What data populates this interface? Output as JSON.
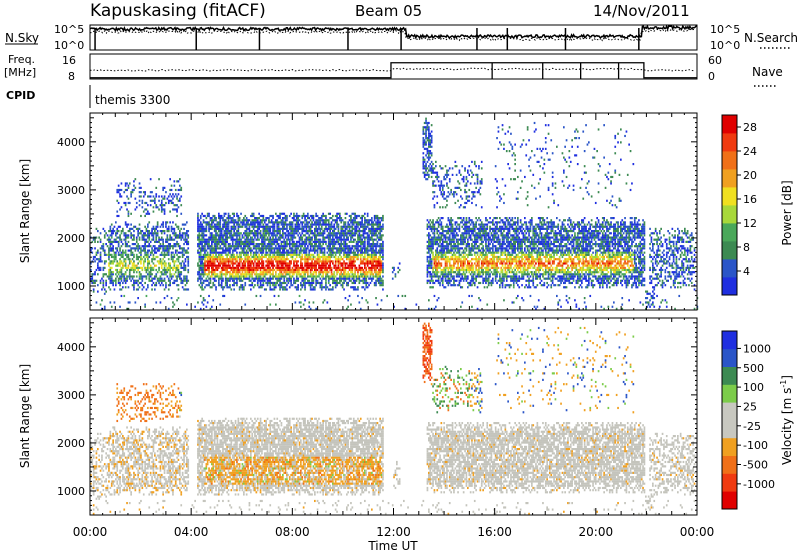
{
  "header": {
    "station": "Kapuskasing (fitACF)",
    "beam": "Beam 05",
    "date": "14/Nov/2011"
  },
  "strips": {
    "nsky_label": "N.Sky",
    "nsky_ticks": [
      "10^5",
      "10^0"
    ],
    "nsearch_label": "N.Search",
    "nsearch_ticks": [
      "10^5",
      "10^0"
    ],
    "freq_label_1": "Freq.",
    "freq_label_2": "[MHz]",
    "freq_ticks": [
      "16",
      "8"
    ],
    "nave_label": "Nave",
    "nave_ticks": [
      "60",
      "0"
    ],
    "cpid_label": "CPID",
    "cpid_value": "themis 3300"
  },
  "colors": {
    "power_scale": [
      "#1f2fe0",
      "#2a55c8",
      "#3c8a52",
      "#4aa85a",
      "#a8d83a",
      "#f0e020",
      "#f0a020",
      "#f07018",
      "#f03a10",
      "#e00000"
    ],
    "velocity_scale": [
      "#1f2fe0",
      "#2a55c8",
      "#3c8a52",
      "#7ccc4a",
      "#c8c8c0",
      "#c8c8c0",
      "#f0a020",
      "#f07018",
      "#f03a10",
      "#e00000"
    ],
    "gray": "#c4c4bc"
  },
  "chart_data": [
    {
      "type": "heatmap",
      "title": "Power",
      "xlabel": "Time UT",
      "ylabel": "Slant Range [km]",
      "xlim": [
        "00:00",
        "24:00"
      ],
      "ylim": [
        500,
        4600
      ],
      "x_tick_labels": [
        "00:00",
        "04:00",
        "08:00",
        "12:00",
        "16:00",
        "20:00",
        "00:00"
      ],
      "y_tick_labels": [
        "1000",
        "2000",
        "3000",
        "4000"
      ],
      "colorbar_label": "Power [dB]",
      "colorbar_ticks": [
        "4",
        "8",
        "12",
        "16",
        "20",
        "24",
        "28"
      ],
      "colorbar_range": [
        0,
        30
      ]
    },
    {
      "type": "heatmap",
      "title": "Velocity",
      "xlabel": "Time UT",
      "ylabel": "Slant Range [km]",
      "xlim": [
        "00:00",
        "24:00"
      ],
      "ylim": [
        500,
        4600
      ],
      "x_tick_labels": [
        "00:00",
        "04:00",
        "08:00",
        "12:00",
        "16:00",
        "20:00",
        "00:00"
      ],
      "y_tick_labels": [
        "1000",
        "2000",
        "3000",
        "4000"
      ],
      "colorbar_label": "Velocity [m s⁻¹]",
      "colorbar_ticks": [
        "1000",
        "500",
        "100",
        "25",
        "-25",
        "-100",
        "-500",
        "-1000"
      ]
    }
  ],
  "axis": {
    "x_ticks": [
      "00:00",
      "04:00",
      "08:00",
      "12:00",
      "16:00",
      "20:00",
      "00:00"
    ],
    "xlabel": "Time UT",
    "y_ticks": [
      "1000",
      "2000",
      "3000",
      "4000"
    ],
    "ylabel": "Slant Range [km]",
    "power_cb_label": "Power [dB]",
    "power_cb_ticks": [
      "4",
      "8",
      "12",
      "16",
      "20",
      "24",
      "28"
    ],
    "vel_cb_label_main": "Velocity [m s",
    "vel_cb_label_sup": "-1",
    "vel_cb_label_end": "]",
    "vel_cb_ticks": [
      "1000",
      "500",
      "100",
      "25",
      "-25",
      "-100",
      "-500",
      "-1000"
    ]
  }
}
